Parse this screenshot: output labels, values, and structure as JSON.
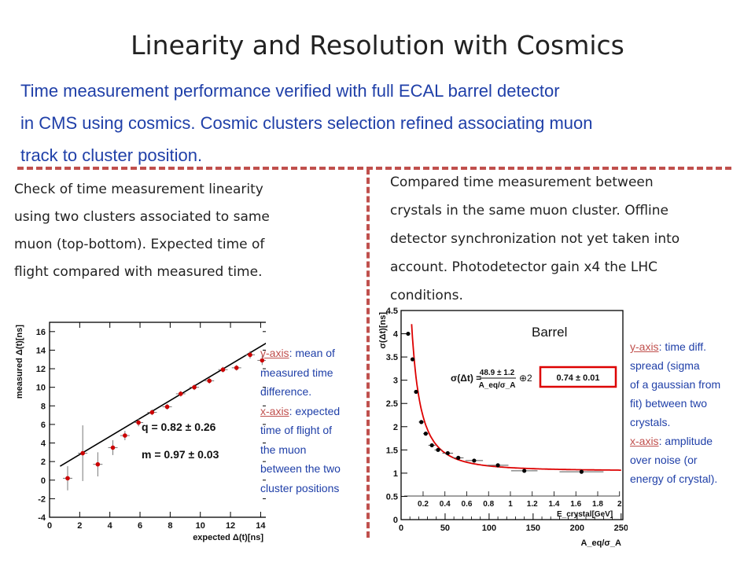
{
  "title": "Linearity and Resolution with Cosmics",
  "intro": [
    "Time measurement performance verified with full ECAL barrel detector",
    "in CMS using cosmics. Cosmic clusters selection refined associating muon",
    "track to cluster position."
  ],
  "left_text": [
    "Check of time measurement linearity",
    "using two clusters associated to same",
    "muon (top-bottom). Expected time of",
    "flight compared with measured time."
  ],
  "right_text": [
    "Compared time measurement  between",
    "crystals in the same muon cluster. Offline",
    "detector synchronization not yet taken into",
    "account. Photodetector gain x4 the LHC",
    "conditions."
  ],
  "left_annot": {
    "y_key": "y-axis",
    "y_rest": ": mean of",
    "y_lines": [
      "measured time",
      "difference."
    ],
    "x_key": "x-axis",
    "x_rest": ": expected",
    "x_lines": [
      "time of flight of",
      "the muon",
      "between the two",
      "cluster positions"
    ]
  },
  "right_annot": {
    "y_key": "y-axis",
    "y_rest": ": time diff.",
    "y_lines": [
      "spread (sigma",
      "of a gaussian from",
      "fit) between two",
      "crystals."
    ],
    "x_key": "x-axis",
    "x_rest": ": amplitude",
    "x_lines": [
      "over noise (or",
      "energy of crystal)."
    ]
  },
  "colors": {
    "title": "#222222",
    "intro": "#1f3fa8",
    "accent": "#c0504d",
    "marker": "#cc0000",
    "fit": "#dd0000"
  },
  "chart_data": [
    {
      "type": "scatter",
      "xlabel": "expected Δ(t)[ns]",
      "ylabel": "measured Δ(t)[ns]",
      "xlim": [
        0,
        14.5
      ],
      "ylim": [
        -4,
        17
      ],
      "xticks": [
        0,
        2,
        4,
        6,
        8,
        10,
        12,
        14
      ],
      "yticks": [
        -4,
        -2,
        0,
        2,
        4,
        6,
        8,
        10,
        12,
        14,
        16
      ],
      "points": [
        {
          "x": 1.2,
          "y": 0.2,
          "ey": 1.3
        },
        {
          "x": 2.2,
          "y": 2.9,
          "ey": 3.0
        },
        {
          "x": 3.2,
          "y": 1.7,
          "ey": 1.3
        },
        {
          "x": 4.2,
          "y": 3.5,
          "ey": 0.8
        },
        {
          "x": 5.0,
          "y": 4.8,
          "ey": 0.5
        },
        {
          "x": 5.9,
          "y": 6.2,
          "ey": 0.4
        },
        {
          "x": 6.8,
          "y": 7.3,
          "ey": 0.3
        },
        {
          "x": 7.8,
          "y": 7.9,
          "ey": 0.3
        },
        {
          "x": 8.7,
          "y": 9.3,
          "ey": 0.3
        },
        {
          "x": 9.6,
          "y": 10.0,
          "ey": 0.3
        },
        {
          "x": 10.6,
          "y": 10.7,
          "ey": 0.3
        },
        {
          "x": 11.5,
          "y": 11.9,
          "ey": 0.3
        },
        {
          "x": 12.4,
          "y": 12.1,
          "ey": 0.3
        },
        {
          "x": 13.3,
          "y": 13.5,
          "ey": 0.4
        },
        {
          "x": 14.1,
          "y": 12.9,
          "ey": 0.5
        }
      ],
      "fit": {
        "q": 0.82,
        "m": 0.97,
        "x_range": [
          0.7,
          14.5
        ]
      },
      "annotations": [
        "q = 0.82 ± 0.26",
        "m = 0.97 ± 0.03"
      ]
    },
    {
      "type": "scatter",
      "label": "Barrel",
      "xlabel": "A_eq/σ_A",
      "ylabel": "σ(Δt)[ns]",
      "x2label": "E_crystal[GeV]",
      "xlim": [
        0,
        252
      ],
      "ylim": [
        0,
        4.5
      ],
      "xticks": [
        0,
        50,
        100,
        150,
        200,
        250
      ],
      "yticks": [
        0,
        0.5,
        1,
        1.5,
        2,
        2.5,
        3,
        3.5,
        4,
        4.5
      ],
      "x2ticks": [
        "0.2",
        "0.4",
        "0.6",
        "0.8",
        "1",
        "1.2",
        "1.4",
        "1.6",
        "1.8",
        "2"
      ],
      "points": [
        {
          "x": 8,
          "y": 4.0,
          "ex": 2
        },
        {
          "x": 13,
          "y": 3.45,
          "ex": 2
        },
        {
          "x": 17,
          "y": 2.75,
          "ex": 2
        },
        {
          "x": 23,
          "y": 2.1,
          "ex": 3
        },
        {
          "x": 28,
          "y": 1.85,
          "ex": 3
        },
        {
          "x": 35,
          "y": 1.6,
          "ex": 4
        },
        {
          "x": 42,
          "y": 1.5,
          "ex": 4
        },
        {
          "x": 53,
          "y": 1.43,
          "ex": 6
        },
        {
          "x": 65,
          "y": 1.33,
          "ex": 6
        },
        {
          "x": 83,
          "y": 1.27,
          "ex": 10
        },
        {
          "x": 110,
          "y": 1.17,
          "ex": 12
        },
        {
          "x": 140,
          "y": 1.05,
          "ex": 15
        },
        {
          "x": 205,
          "y": 1.03,
          "ex": 25
        }
      ],
      "fit": {
        "N": 48.9,
        "C": 0.74,
        "x_range": [
          5,
          250
        ]
      },
      "fit_label": {
        "lhs": "σ(Δt) =",
        "num": "48.9 ± 1.2",
        "den": "A_eq/σ_A",
        "sqrt": "⊕2",
        "box": "0.74 ± 0.01"
      }
    }
  ]
}
